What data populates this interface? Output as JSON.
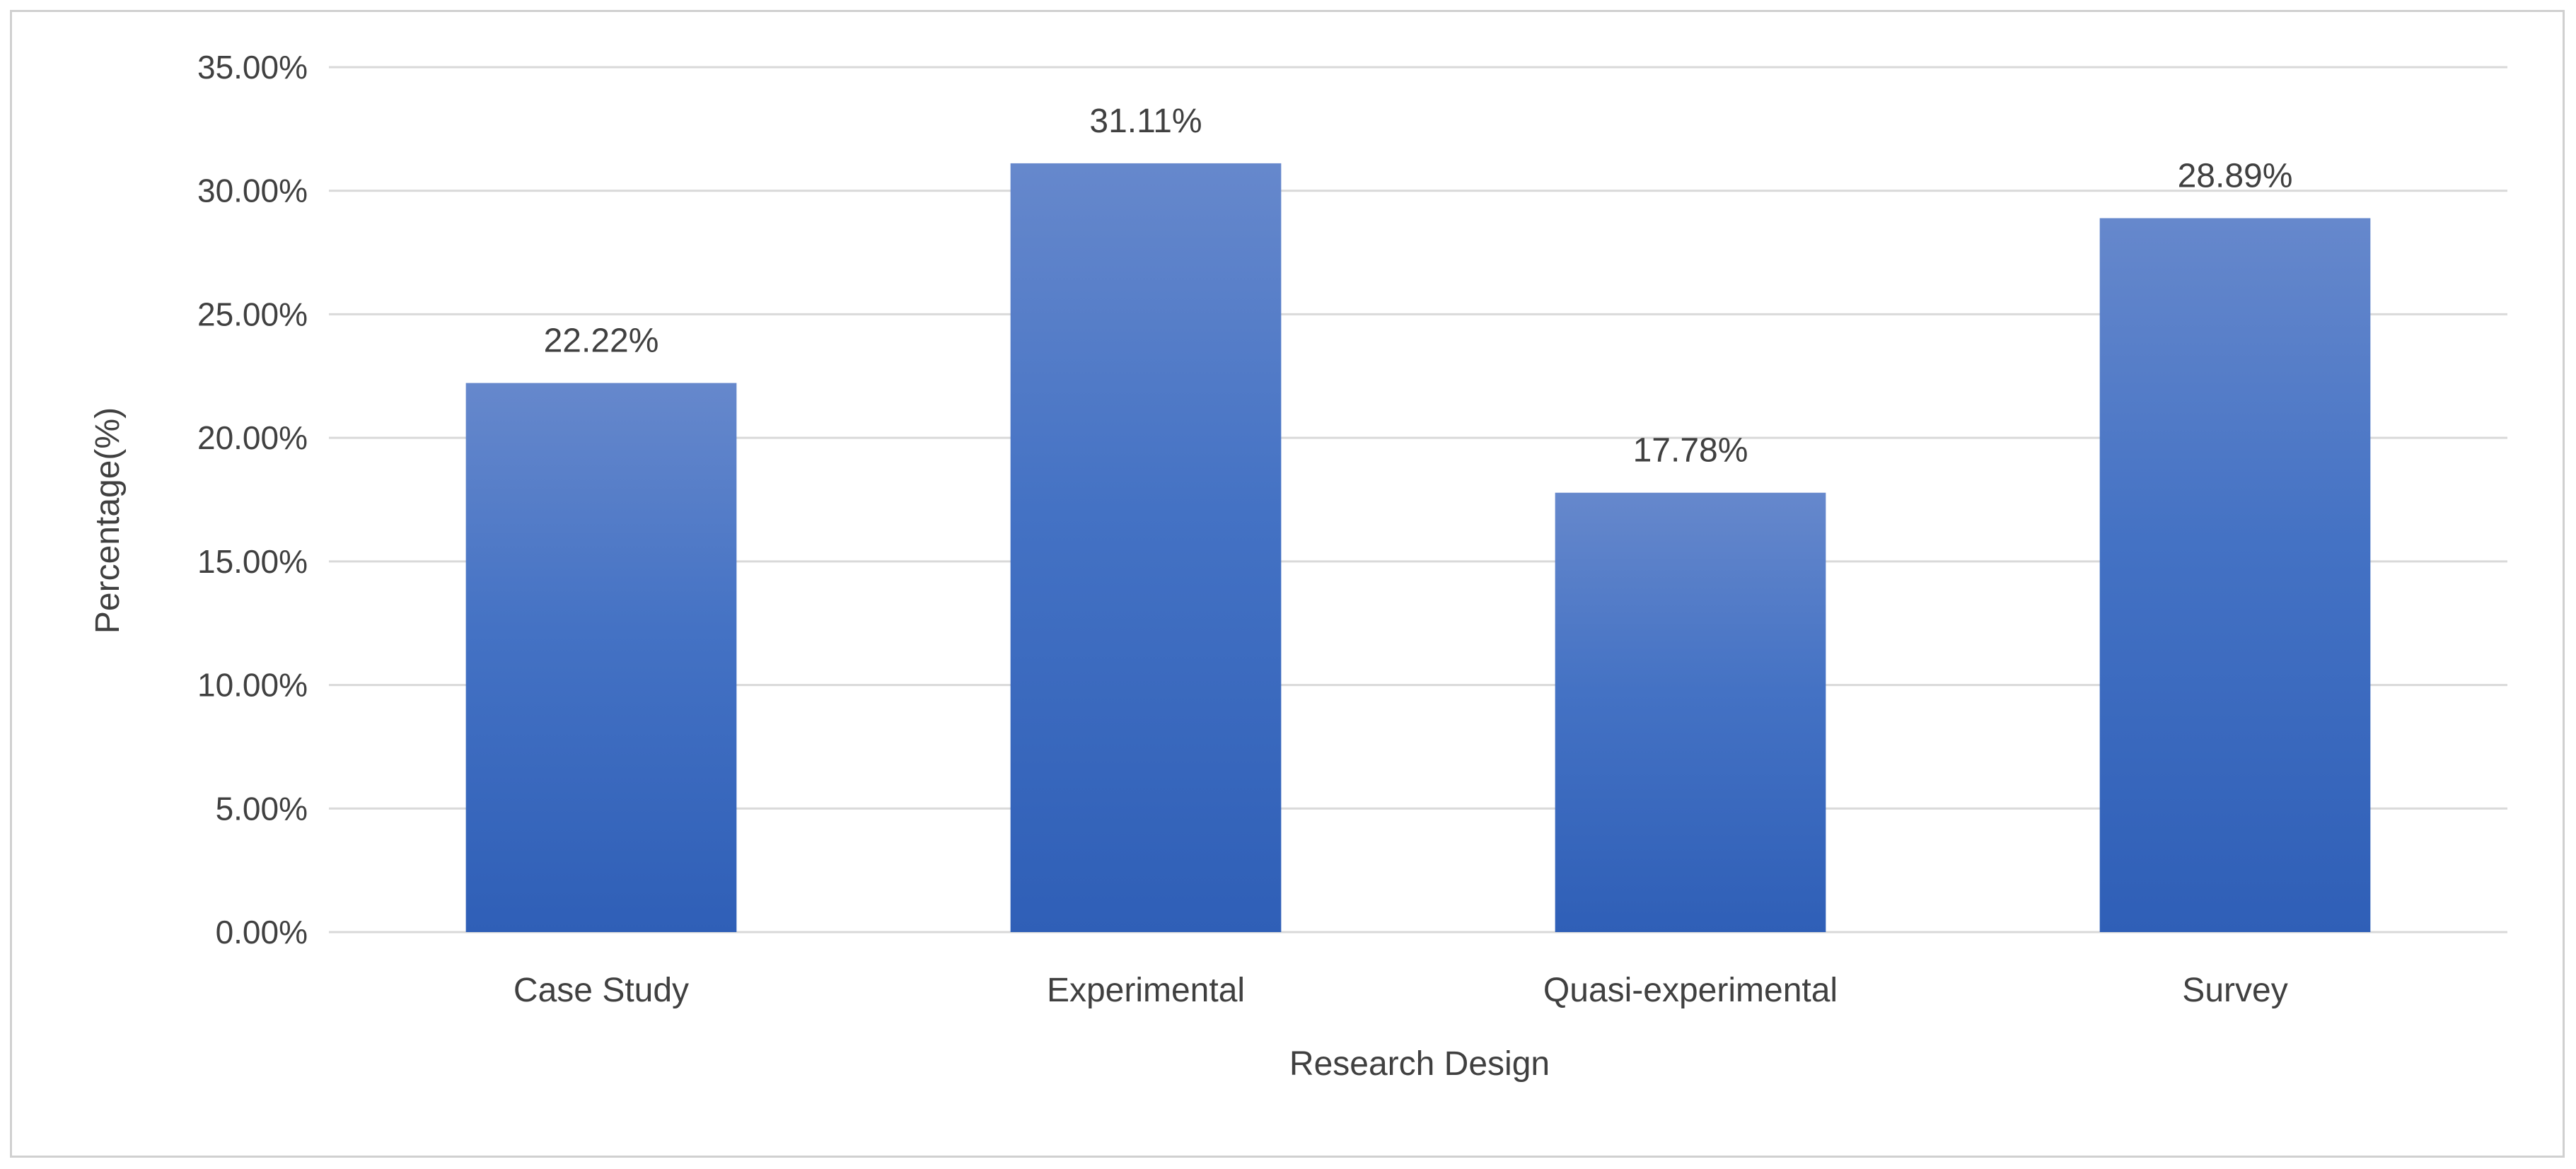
{
  "chart_data": {
    "type": "bar",
    "categories": [
      "Case Study",
      "Experimental",
      "Quasi-experimental",
      "Survey"
    ],
    "values": [
      22.22,
      31.11,
      17.78,
      28.89
    ],
    "data_labels": [
      "22.22%",
      "31.11%",
      "17.78%",
      "28.89%"
    ],
    "title": "",
    "xlabel": "Research Design",
    "ylabel": "Percentage(%)",
    "ylim": [
      0,
      35
    ],
    "yticks": [
      0,
      5,
      10,
      15,
      20,
      25,
      30,
      35
    ],
    "ytick_labels": [
      "0.00%",
      "5.00%",
      "10.00%",
      "15.00%",
      "20.00%",
      "25.00%",
      "30.00%",
      "35.00%"
    ],
    "grid": true,
    "legend": "none",
    "colors": {
      "bar_top": "#6688cc",
      "bar_mid": "#4472c4",
      "bar_bottom": "#2f5fb7",
      "gridline": "#d9d9d9",
      "text": "#404040"
    }
  }
}
